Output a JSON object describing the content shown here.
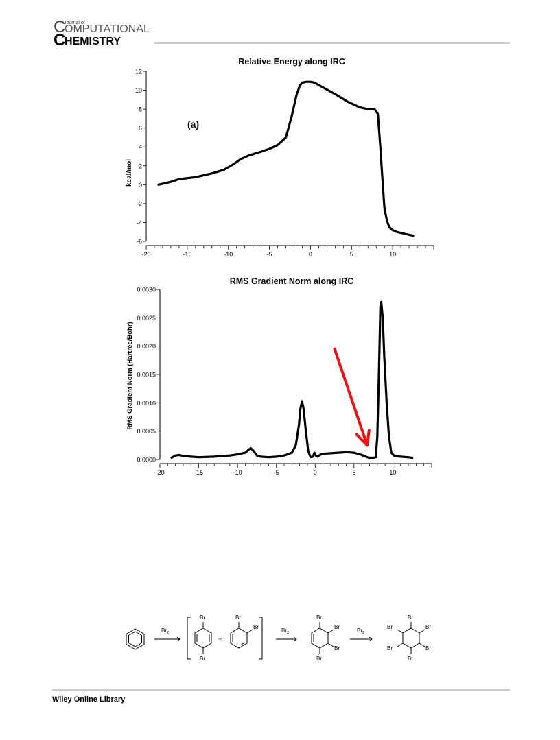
{
  "journal": {
    "journal_of": "Journal of",
    "line1": "OMPUTATIONAL",
    "line2": "HEMISTRY",
    "initial": "C"
  },
  "footer": {
    "text": "Wiley Online Library"
  },
  "chart_data": [
    {
      "type": "line",
      "title": "Relative Energy along IRC",
      "ylabel": "kcal/mol",
      "xlabel": "",
      "panel_label": "(a)",
      "xlim": [
        -20,
        15
      ],
      "ylim": [
        -6,
        12
      ],
      "xticks": [
        "-20",
        "-15",
        "-10",
        "-5",
        "0",
        "5",
        "10"
      ],
      "yticks": [
        "-6",
        "-4",
        "-2",
        "0",
        "2",
        "4",
        "6",
        "8",
        "10",
        "12"
      ],
      "color": "#000000",
      "x": [
        -18.5,
        -17,
        -16,
        -14,
        -12,
        -10.5,
        -9.5,
        -8.5,
        -7.5,
        -6,
        -5,
        -4,
        -3,
        -2.3,
        -1.7,
        -1.3,
        -1.0,
        -0.5,
        0,
        0.5,
        1.5,
        3,
        4.5,
        6,
        7,
        7.8,
        8.2,
        8.5,
        8.8,
        9.0,
        9.3,
        9.6,
        10,
        10.5,
        11.5,
        12.5
      ],
      "y": [
        0.0,
        0.3,
        0.6,
        0.8,
        1.2,
        1.6,
        2.1,
        2.7,
        3.1,
        3.5,
        3.8,
        4.2,
        5.0,
        7.2,
        9.5,
        10.5,
        10.8,
        10.9,
        10.9,
        10.8,
        10.3,
        9.6,
        8.8,
        8.2,
        8.0,
        8.0,
        7.5,
        4.0,
        0.0,
        -2.5,
        -3.8,
        -4.5,
        -4.8,
        -5.0,
        -5.2,
        -5.4
      ]
    },
    {
      "type": "line",
      "title": "RMS Gradient Norm along IRC",
      "ylabel": "RMS Gradient Norm (Hartree/Bohr)",
      "xlabel": "",
      "xlim": [
        -20,
        15
      ],
      "ylim": [
        0,
        0.003
      ],
      "xticks": [
        "-20",
        "-15",
        "-10",
        "-5",
        "0",
        "5",
        "10"
      ],
      "yticks": [
        "0.0000",
        "0.0005",
        "0.0010",
        "0.0015",
        "0.0020",
        "0.0025",
        "0.0030"
      ],
      "color": "#000000",
      "annotation": {
        "type": "arrow",
        "color": "#ee1111",
        "from": [
          2.5,
          0.00195
        ],
        "to": [
          6.7,
          0.00025
        ]
      },
      "x": [
        -18.5,
        -18,
        -17.5,
        -17,
        -16,
        -15,
        -13,
        -11,
        -10,
        -9,
        -8.6,
        -8.3,
        -8.0,
        -7.5,
        -7,
        -6,
        -5,
        -4,
        -3,
        -2.5,
        -2.1,
        -1.9,
        -1.7,
        -1.5,
        -1.2,
        -0.9,
        -0.6,
        -0.3,
        -0.1,
        0.1,
        0.3,
        0.6,
        1,
        2,
        3,
        4,
        5,
        6,
        6.7,
        7,
        7.5,
        7.8,
        8.0,
        8.2,
        8.4,
        8.5,
        8.7,
        8.9,
        9.2,
        9.5,
        9.8,
        10.2,
        11,
        12,
        12.5
      ],
      "y": [
        3e-05,
        7e-05,
        8e-05,
        6e-05,
        5e-05,
        4e-05,
        5e-05,
        7e-05,
        9e-05,
        0.00012,
        0.00017,
        0.0002,
        0.00016,
        7e-05,
        5e-05,
        4e-05,
        5e-05,
        7e-05,
        0.00012,
        0.00025,
        0.0006,
        0.0009,
        0.00103,
        0.0009,
        0.0005,
        0.00015,
        4e-05,
        5e-05,
        0.00012,
        6e-05,
        5e-05,
        8e-05,
        0.0001,
        0.00011,
        0.00012,
        0.00013,
        0.00012,
        8e-05,
        4e-05,
        3e-05,
        3e-05,
        4e-05,
        0.0004,
        0.0015,
        0.0027,
        0.00278,
        0.0025,
        0.0018,
        0.001,
        0.0004,
        0.00012,
        6e-05,
        5e-05,
        4e-05,
        3e-05
      ]
    }
  ],
  "scheme": {
    "reagent_1": "Br",
    "reagent_1_sub": "2",
    "reagent_2": "Br",
    "reagent_2_sub": "2",
    "reagent_3": "Br",
    "reagent_3_sub": "2",
    "plus": "+",
    "substituent": "Br"
  }
}
